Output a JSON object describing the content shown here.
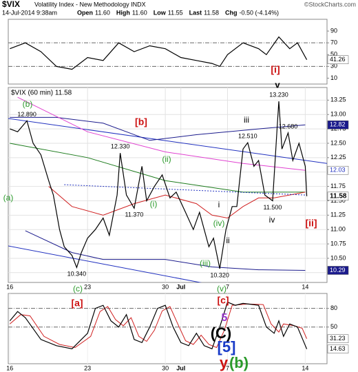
{
  "header": {
    "symbol": "$VIX",
    "name": "Volatility Index - New Methodology INDX",
    "source": "©StockCharts.com",
    "datetime": "14-Jul-2014 9:38am",
    "quote": [
      {
        "label": "Open",
        "value": "11.60"
      },
      {
        "label": "High",
        "value": "11.60"
      },
      {
        "label": "Low",
        "value": "11.55"
      },
      {
        "label": "Last",
        "value": "11.58"
      },
      {
        "label": "Chg",
        "value": "-0.50 (-4.14%)"
      }
    ]
  },
  "wave_labels": [
    {
      "text": "(b)",
      "color": "#2a9a2a"
    },
    {
      "text": "[b]",
      "color": "#cc1111"
    },
    {
      "text": "(a)",
      "color": "#2a9a2a"
    },
    {
      "text": "(c)",
      "color": "#2a9a2a"
    },
    {
      "text": "(ii)",
      "color": "#2a9a2a"
    },
    {
      "text": "(i)",
      "color": "#2a9a2a"
    },
    {
      "text": "iii",
      "color": "#000000"
    },
    {
      "text": "v",
      "color": "#000000"
    },
    {
      "text": "[i]",
      "color": "#cc1111"
    },
    {
      "text": "[ii]",
      "color": "#cc1111"
    },
    {
      "text": "iv",
      "color": "#000000"
    },
    {
      "text": "i",
      "color": "#000000"
    },
    {
      "text": "ii",
      "color": "#000000"
    },
    {
      "text": "(iv)",
      "color": "#2a9a2a"
    },
    {
      "text": "(iii)",
      "color": "#2a9a2a"
    },
    {
      "text": "(v)",
      "color": "#2a9a2a"
    },
    {
      "text": "[c]",
      "color": "#cc1111"
    },
    {
      "text": "[a]",
      "color": "#cc1111"
    },
    {
      "text": "5",
      "color": "#9933cc"
    },
    {
      "text": "(C)",
      "color": "#000000"
    },
    {
      "text": "[5]",
      "color": "#1a3cc8"
    },
    {
      "text": "y",
      "color": "#cc1111"
    },
    {
      "text": "(b)",
      "color": "#2a9a2a"
    }
  ],
  "chart_data": [
    {
      "type": "line",
      "xlim": [
        -0.1,
        20.4
      ],
      "ylim": [
        0,
        110
      ],
      "yticks": [
        90,
        70,
        50,
        30,
        10
      ],
      "reference_lines": [
        70,
        30
      ],
      "series": [
        {
          "color": "#000000",
          "x": [
            0,
            1,
            2,
            3,
            4,
            4.5,
            5,
            6,
            7,
            8,
            9,
            10,
            11,
            12,
            13,
            13.5,
            14,
            15,
            16,
            16.5,
            17.3,
            18,
            18.5,
            19.1
          ],
          "values": [
            60,
            70,
            55,
            30,
            25,
            35,
            45,
            40,
            70,
            55,
            65,
            60,
            45,
            40,
            35,
            30,
            50,
            70,
            60,
            50,
            80,
            60,
            70,
            41.26
          ]
        }
      ],
      "tags": [
        {
          "value": 41.26,
          "color": "#ffffff",
          "text_color": "#000000"
        }
      ]
    },
    {
      "type": "line",
      "legend_text": "$VIX (60 min) 11.58",
      "xlim": [
        -0.1,
        20.4
      ],
      "ylim": [
        10.08,
        13.47
      ],
      "yticks": [
        13.25,
        {
          "value": 13,
          "label": "13.00"
        },
        12.75,
        {
          "value": 12.5,
          "label": "12.50"
        },
        12.25,
        {
          "value": 12,
          "label": "12.00"
        },
        11.75,
        {
          "value": 11.5,
          "label": "11.50"
        },
        11.25,
        {
          "value": 11,
          "label": "11.00"
        },
        10.75,
        {
          "value": 10.5,
          "label": "10.50"
        },
        10.25
      ],
      "xticks": [
        {
          "value": 0,
          "label": "16"
        },
        {
          "value": 5,
          "label": "23"
        },
        {
          "value": 10,
          "label": "30"
        },
        {
          "value": 11,
          "label": "Jul"
        },
        {
          "value": 14,
          "label": "7"
        },
        {
          "value": 19,
          "label": "14"
        }
      ],
      "grid": true,
      "series": [
        {
          "color": "#1f2fbf",
          "x": [
            -0.6,
            20.4
          ],
          "values": [
            12.95,
            12.15
          ]
        },
        {
          "color": "#1f2fbf",
          "x": [
            -0.6,
            20.4
          ],
          "values": [
            10.74,
            9.66
          ]
        },
        {
          "color": "#1a1a8c",
          "x": [
            0,
            3,
            6,
            9,
            12,
            16,
            19
          ],
          "values": [
            12.95,
            12.95,
            12.85,
            12.55,
            12.65,
            12.75,
            12.82
          ]
        },
        {
          "color": "#1a1a8c",
          "x": [
            1,
            4,
            6,
            10,
            13,
            16,
            19
          ],
          "values": [
            10.98,
            10.6,
            10.48,
            10.48,
            10.35,
            10.3,
            10.29
          ]
        },
        {
          "color": "#e040d0",
          "x": [
            0.5,
            5,
            10,
            15,
            19
          ],
          "values": [
            13.3,
            12.7,
            12.35,
            12.15,
            12.03
          ]
        },
        {
          "color": "#1a7a1a",
          "x": [
            0,
            5,
            10,
            15,
            19
          ],
          "values": [
            12.5,
            12.25,
            11.85,
            11.65,
            11.65
          ]
        },
        {
          "color": "#d02020",
          "x": [
            2.5,
            4,
            6,
            8,
            10,
            12,
            13,
            14,
            15,
            16,
            17,
            19
          ],
          "values": [
            11.75,
            11.4,
            11.25,
            11.45,
            11.6,
            11.45,
            11.25,
            11.2,
            11.4,
            11.55,
            11.55,
            11.65
          ]
        },
        {
          "color": "#1f2fbf",
          "style": "dotted",
          "x": [
            3.5,
            19
          ],
          "values": [
            11.78,
            11.6
          ]
        },
        {
          "color": "#000000",
          "x": [
            0,
            0.5,
            1.1,
            1.5,
            2,
            2.5,
            2.8,
            3.2,
            3.5,
            4,
            4.3,
            4.6,
            5,
            5.5,
            6,
            6.4,
            6.9,
            7.1,
            7.5,
            8,
            8.5,
            8.8,
            9.3,
            9.8,
            10.3,
            10.7,
            11.3,
            11.8,
            12.2,
            12.8,
            13.1,
            13.5,
            13.9,
            14.3,
            14.6,
            15,
            15.3,
            15.7,
            16,
            16.4,
            16.9,
            17.2,
            17.3,
            17.5,
            17.9,
            18.2,
            18.6,
            19,
            19.1
          ],
          "values": [
            12.75,
            12.7,
            12.89,
            12.5,
            12.3,
            11.85,
            11.6,
            11.0,
            10.7,
            10.55,
            10.34,
            10.6,
            10.85,
            11.0,
            11.2,
            10.9,
            11.6,
            12.33,
            11.6,
            11.37,
            12.1,
            11.5,
            11.75,
            11.95,
            11.55,
            11.65,
            11.3,
            11.0,
            11.3,
            10.7,
            10.85,
            10.32,
            11.0,
            11.4,
            11.4,
            12.4,
            12.51,
            12.1,
            12.2,
            11.6,
            11.5,
            12.8,
            13.23,
            12.4,
            12.68,
            12.2,
            12.5,
            12.1,
            11.58
          ]
        }
      ],
      "peak_labels": [
        {
          "x": 1.1,
          "value": 12.89,
          "label": "12.890"
        },
        {
          "x": 7.1,
          "value": 12.33,
          "label": "12.330"
        },
        {
          "x": 8,
          "value": 11.37,
          "label": "11.370"
        },
        {
          "x": 4.3,
          "value": 10.34,
          "label": "10.340"
        },
        {
          "x": 15.3,
          "value": 12.51,
          "label": "12.510"
        },
        {
          "x": 17.3,
          "value": 13.23,
          "label": "13.230"
        },
        {
          "x": 17.9,
          "value": 12.68,
          "label": "12.680"
        },
        {
          "x": 16.9,
          "value": 11.5,
          "label": "11.500"
        },
        {
          "x": 13.5,
          "value": 10.32,
          "label": "10.320"
        }
      ],
      "tags": [
        {
          "value": 12.82,
          "color": "#1a1a8c",
          "text_color": "#ffffff"
        },
        {
          "value": 12.03,
          "color": "#ffffff",
          "text_color": "#1f2fbf"
        },
        {
          "value": 11.58,
          "color": "#ffffff",
          "text_color": "#000000",
          "bold": true
        },
        {
          "value": 10.29,
          "color": "#1a1a8c",
          "text_color": "#ffffff"
        }
      ]
    },
    {
      "type": "line",
      "xlim": [
        -0.1,
        20.4
      ],
      "ylim": [
        -9,
        104
      ],
      "yticks": [
        80,
        50
      ],
      "reference_lines": [
        80,
        50
      ],
      "xticks": [
        {
          "value": 0,
          "label": "16"
        },
        {
          "value": 5,
          "label": "23"
        },
        {
          "value": 10,
          "label": "30"
        },
        {
          "value": 11,
          "label": "Jul"
        },
        {
          "value": 14,
          "label": "7"
        },
        {
          "value": 19,
          "label": "14"
        }
      ],
      "series": [
        {
          "color": "#d02020",
          "x": [
            0,
            0.7,
            1.3,
            2.2,
            3.2,
            4.2,
            5.2,
            5.8,
            6.3,
            6.8,
            7.3,
            7.8,
            8.3,
            8.8,
            9.3,
            9.8,
            10.3,
            10.8,
            11.3,
            11.8,
            12.3,
            12.8,
            13.3,
            13.8,
            14.3,
            14.8,
            15.3,
            16.3,
            16.8,
            17.3,
            17.6,
            18.3,
            18.8,
            19.1
          ],
          "values": [
            55,
            70,
            68,
            35,
            22,
            17,
            35,
            75,
            83,
            62,
            52,
            65,
            35,
            27,
            45,
            76,
            83,
            55,
            28,
            22,
            37,
            22,
            17,
            45,
            85,
            86,
            87,
            86,
            55,
            42,
            55,
            52,
            48,
            31.23
          ]
        },
        {
          "color": "#000000",
          "x": [
            0,
            0.5,
            1,
            2,
            3,
            4,
            5,
            5.5,
            6,
            6.5,
            7,
            7.5,
            8,
            8.5,
            9,
            9.5,
            10,
            10.5,
            11,
            11.5,
            12,
            12.5,
            13,
            13.5,
            14,
            14.5,
            15,
            16,
            16.5,
            17,
            17.3,
            17.6,
            18,
            18.5,
            19.1
          ],
          "values": [
            60,
            75,
            65,
            30,
            20,
            15,
            40,
            80,
            85,
            60,
            50,
            70,
            30,
            25,
            50,
            80,
            85,
            50,
            25,
            20,
            40,
            20,
            15,
            50,
            90,
            85,
            88,
            85,
            50,
            40,
            60,
            35,
            55,
            50,
            14.63
          ]
        }
      ],
      "tags": [
        {
          "value": 31.23,
          "color": "#ffffff",
          "text_color": "#000000"
        },
        {
          "value": 14.63,
          "color": "#ffffff",
          "text_color": "#000000"
        }
      ]
    }
  ]
}
